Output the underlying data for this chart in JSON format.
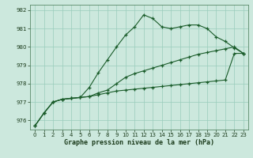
{
  "xlabel": "Graphe pression niveau de la mer (hPa)",
  "background_color": "#cce8dd",
  "plot_bg_color": "#cce8dd",
  "grid_color": "#99ccbb",
  "line_color": "#1a5c2a",
  "ylim": [
    975.5,
    982.3
  ],
  "xlim": [
    -0.5,
    23.5
  ],
  "yticks": [
    976,
    977,
    978,
    979,
    980,
    981,
    982
  ],
  "xticks": [
    0,
    1,
    2,
    3,
    4,
    5,
    6,
    7,
    8,
    9,
    10,
    11,
    12,
    13,
    14,
    15,
    16,
    17,
    18,
    19,
    20,
    21,
    22,
    23
  ],
  "series": [
    [
      975.7,
      976.4,
      977.0,
      977.15,
      977.2,
      977.25,
      977.3,
      977.4,
      977.5,
      977.6,
      977.65,
      977.7,
      977.75,
      977.8,
      977.85,
      977.9,
      977.95,
      978.0,
      978.05,
      978.1,
      978.15,
      978.2,
      979.65,
      979.65
    ],
    [
      975.7,
      976.4,
      977.0,
      977.15,
      977.2,
      977.25,
      977.3,
      977.5,
      977.65,
      978.0,
      978.35,
      978.55,
      978.7,
      978.85,
      979.0,
      979.15,
      979.3,
      979.45,
      979.6,
      979.7,
      979.8,
      979.9,
      980.0,
      979.65
    ],
    [
      975.7,
      976.4,
      977.0,
      977.15,
      977.2,
      977.25,
      977.8,
      978.6,
      979.3,
      980.0,
      980.65,
      981.1,
      981.75,
      981.55,
      981.1,
      981.0,
      981.1,
      981.2,
      981.2,
      981.0,
      980.55,
      980.3,
      979.95,
      979.65
    ]
  ]
}
